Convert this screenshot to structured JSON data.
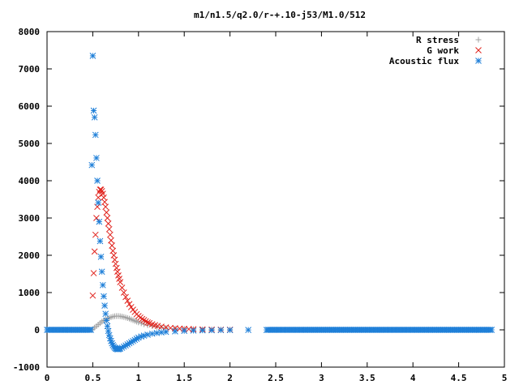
{
  "chart_data": {
    "type": "scatter",
    "title": "m1/n1.5/q2.0/r-+.10-j53/M1.0/512",
    "xlabel": "",
    "ylabel": "",
    "xlim": [
      0,
      5
    ],
    "ylim": [
      -1000,
      8000
    ],
    "x_ticks": [
      0,
      0.5,
      1,
      1.5,
      2,
      2.5,
      3,
      3.5,
      4,
      4.5,
      5
    ],
    "x_tick_labels": [
      "0",
      "0.5",
      "1",
      "1.5",
      "2",
      "2.5",
      "3",
      "3.5",
      "4",
      "4.5",
      "5"
    ],
    "y_ticks": [
      -1000,
      0,
      1000,
      2000,
      3000,
      4000,
      5000,
      6000,
      7000,
      8000
    ],
    "y_tick_labels": [
      "-1000",
      "0",
      "1000",
      "2000",
      "3000",
      "4000",
      "5000",
      "6000",
      "7000",
      "8000"
    ],
    "grid": false,
    "legend_position": "top-right",
    "series": [
      {
        "name": "R stress",
        "marker": "plus",
        "color": "#a0a0a0",
        "x": [
          0.0,
          0.1,
          0.2,
          0.3,
          0.4,
          0.48,
          0.5,
          0.52,
          0.54,
          0.56,
          0.58,
          0.6,
          0.62,
          0.64,
          0.66,
          0.68,
          0.7,
          0.72,
          0.74,
          0.76,
          0.78,
          0.8,
          0.82,
          0.84,
          0.86,
          0.88,
          0.9,
          0.92,
          0.94,
          0.96,
          0.98,
          1.0,
          1.03,
          1.06,
          1.1,
          1.15,
          1.2,
          1.25,
          1.3,
          1.4,
          1.5,
          1.6,
          1.7,
          1.8,
          1.9,
          2.0
        ],
        "y": [
          0,
          0,
          0,
          0,
          0,
          0,
          20,
          60,
          100,
          140,
          180,
          220,
          250,
          280,
          300,
          320,
          340,
          355,
          365,
          370,
          370,
          365,
          355,
          345,
          330,
          315,
          300,
          280,
          260,
          240,
          220,
          200,
          175,
          150,
          125,
          100,
          80,
          65,
          50,
          35,
          25,
          18,
          12,
          8,
          5,
          3
        ]
      },
      {
        "name": "G work",
        "marker": "cross",
        "color": "#e0201a",
        "x": [
          0.5,
          0.51,
          0.52,
          0.53,
          0.54,
          0.55,
          0.56,
          0.57,
          0.58,
          0.59,
          0.6,
          0.61,
          0.62,
          0.63,
          0.64,
          0.65,
          0.66,
          0.67,
          0.68,
          0.69,
          0.7,
          0.71,
          0.72,
          0.73,
          0.74,
          0.75,
          0.76,
          0.77,
          0.78,
          0.79,
          0.8,
          0.82,
          0.84,
          0.86,
          0.88,
          0.9,
          0.92,
          0.94,
          0.96,
          0.98,
          1.0,
          1.02,
          1.04,
          1.06,
          1.08,
          1.1,
          1.12,
          1.15,
          1.18,
          1.21,
          1.25,
          1.3,
          1.35,
          1.4,
          1.45,
          1.5,
          1.55,
          1.6,
          1.7,
          1.8,
          1.9,
          2.0
        ],
        "y": [
          920,
          1520,
          2100,
          2550,
          3000,
          3300,
          3550,
          3700,
          3760,
          3760,
          3720,
          3650,
          3550,
          3430,
          3300,
          3150,
          3000,
          2850,
          2700,
          2550,
          2400,
          2260,
          2120,
          2000,
          1880,
          1770,
          1660,
          1560,
          1460,
          1370,
          1280,
          1130,
          1000,
          880,
          780,
          690,
          610,
          540,
          480,
          420,
          370,
          330,
          290,
          260,
          230,
          200,
          180,
          150,
          125,
          105,
          85,
          65,
          50,
          40,
          32,
          25,
          20,
          16,
          10,
          6,
          4,
          3
        ]
      },
      {
        "name": "Acoustic flux",
        "marker": "star",
        "color": "#1e7fd8",
        "x_start": 0.0,
        "x_step": 0.015,
        "flat_range": [
          0.0,
          4.87
        ],
        "points": [
          [
            0.49,
            4420
          ],
          [
            0.5,
            7350
          ],
          [
            0.51,
            5880
          ],
          [
            0.52,
            5700
          ],
          [
            0.53,
            5230
          ],
          [
            0.54,
            4610
          ],
          [
            0.55,
            4000
          ],
          [
            0.56,
            3410
          ],
          [
            0.57,
            2900
          ],
          [
            0.58,
            2380
          ],
          [
            0.59,
            1960
          ],
          [
            0.6,
            1560
          ],
          [
            0.61,
            1200
          ],
          [
            0.62,
            900
          ],
          [
            0.63,
            650
          ],
          [
            0.64,
            430
          ],
          [
            0.65,
            250
          ],
          [
            0.66,
            100
          ],
          [
            0.67,
            -30
          ],
          [
            0.68,
            -140
          ],
          [
            0.69,
            -230
          ],
          [
            0.7,
            -300
          ],
          [
            0.71,
            -360
          ],
          [
            0.72,
            -410
          ],
          [
            0.73,
            -450
          ],
          [
            0.74,
            -480
          ],
          [
            0.75,
            -500
          ],
          [
            0.76,
            -510
          ],
          [
            0.77,
            -520
          ],
          [
            0.78,
            -520
          ],
          [
            0.79,
            -510
          ],
          [
            0.8,
            -500
          ],
          [
            0.82,
            -480
          ],
          [
            0.84,
            -450
          ],
          [
            0.86,
            -420
          ],
          [
            0.88,
            -390
          ],
          [
            0.9,
            -360
          ],
          [
            0.92,
            -330
          ],
          [
            0.94,
            -300
          ],
          [
            0.96,
            -270
          ],
          [
            0.98,
            -240
          ],
          [
            1.0,
            -210
          ],
          [
            1.03,
            -180
          ],
          [
            1.06,
            -155
          ],
          [
            1.1,
            -130
          ],
          [
            1.15,
            -105
          ],
          [
            1.2,
            -85
          ],
          [
            1.25,
            -68
          ],
          [
            1.3,
            -55
          ],
          [
            1.4,
            -40
          ],
          [
            1.5,
            -28
          ],
          [
            1.6,
            -20
          ],
          [
            1.7,
            -14
          ],
          [
            1.8,
            -10
          ],
          [
            1.9,
            -7
          ],
          [
            2.0,
            -5
          ],
          [
            2.2,
            -3
          ],
          [
            2.4,
            -2
          ]
        ]
      }
    ]
  }
}
